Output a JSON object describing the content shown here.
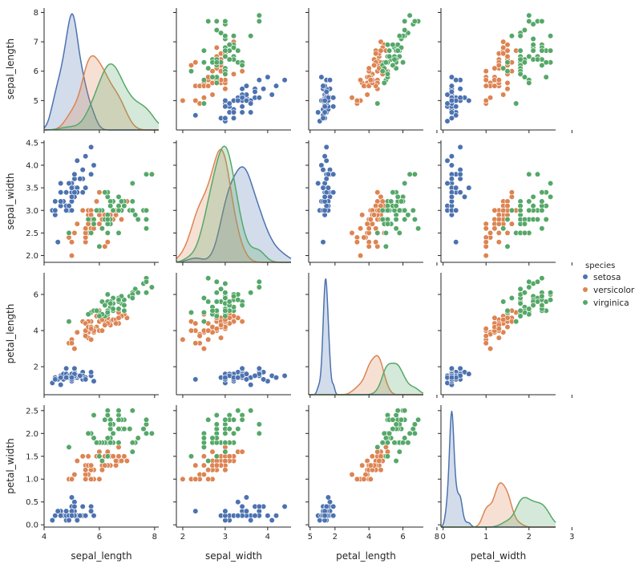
{
  "chart_data": {
    "type": "pairplot",
    "variables": [
      "sepal_length",
      "sepal_width",
      "petal_length",
      "petal_width"
    ],
    "axis_ranges": {
      "sepal_length": [
        4.0,
        8.15
      ],
      "sepal_width": [
        1.85,
        4.55
      ],
      "petal_length": [
        0.45,
        7.2
      ],
      "petal_width": [
        -0.05,
        2.62
      ]
    },
    "x_ticks": {
      "sepal_length": [
        4,
        6,
        8
      ],
      "sepal_width": [
        2,
        3,
        4,
        5
      ],
      "petal_length": [
        2,
        4,
        6,
        8
      ],
      "petal_width": [
        0,
        1,
        2,
        3
      ]
    },
    "y_ticks": {
      "sepal_length": [
        5,
        6,
        7,
        8
      ],
      "sepal_width": [
        2.0,
        2.5,
        3.0,
        3.5,
        4.0,
        4.5
      ],
      "petal_length": [
        2,
        4,
        6
      ],
      "petal_width": [
        0.0,
        0.5,
        1.0,
        1.5,
        2.0,
        2.5
      ]
    },
    "y_tick_labels": {
      "sepal_length": [
        "5",
        "6",
        "7",
        "8"
      ],
      "sepal_width": [
        "2.0",
        "2.5",
        "3.0",
        "3.5",
        "4.0",
        "4.5"
      ],
      "petal_length": [
        "2",
        "4",
        "6"
      ],
      "petal_width": [
        "0.0",
        "0.5",
        "1.0",
        "1.5",
        "2.0",
        "2.5"
      ]
    },
    "legend": {
      "title": "species",
      "placement": "right",
      "entries": [
        "setosa",
        "versicolor",
        "virginica"
      ]
    },
    "colors": {
      "setosa": "#4c72b0",
      "versicolor": "#dd8452",
      "virginica": "#55a868"
    },
    "grid": false,
    "diagonal": "kde",
    "series": [
      {
        "name": "setosa",
        "sepal_length": [
          5.1,
          4.9,
          4.7,
          4.6,
          5.0,
          5.4,
          4.6,
          5.0,
          4.4,
          4.9,
          5.4,
          4.8,
          4.8,
          4.3,
          5.8,
          5.7,
          5.4,
          5.1,
          5.7,
          5.1,
          5.4,
          5.1,
          4.6,
          5.1,
          4.8,
          5.0,
          5.0,
          5.2,
          5.2,
          4.7,
          4.8,
          5.4,
          5.2,
          5.5,
          4.9,
          5.0,
          5.5,
          4.9,
          4.4,
          5.1,
          5.0,
          4.5,
          4.4,
          5.0,
          5.1,
          4.8,
          5.1,
          4.6,
          5.3,
          5.0
        ],
        "sepal_width": [
          3.5,
          3.0,
          3.2,
          3.1,
          3.6,
          3.9,
          3.4,
          3.4,
          2.9,
          3.1,
          3.7,
          3.4,
          3.0,
          3.0,
          4.0,
          4.4,
          3.9,
          3.5,
          3.8,
          3.8,
          3.4,
          3.7,
          3.6,
          3.3,
          3.4,
          3.0,
          3.4,
          3.5,
          3.4,
          3.2,
          3.1,
          3.4,
          4.1,
          4.2,
          3.1,
          3.2,
          3.5,
          3.6,
          3.0,
          3.4,
          3.5,
          2.3,
          3.2,
          3.5,
          3.8,
          3.0,
          3.8,
          3.2,
          3.7,
          3.3
        ],
        "petal_length": [
          1.4,
          1.4,
          1.3,
          1.5,
          1.4,
          1.7,
          1.4,
          1.5,
          1.4,
          1.5,
          1.5,
          1.6,
          1.4,
          1.1,
          1.2,
          1.5,
          1.3,
          1.4,
          1.7,
          1.5,
          1.7,
          1.5,
          1.0,
          1.7,
          1.9,
          1.6,
          1.6,
          1.5,
          1.4,
          1.6,
          1.6,
          1.5,
          1.5,
          1.4,
          1.5,
          1.2,
          1.3,
          1.4,
          1.3,
          1.5,
          1.3,
          1.3,
          1.3,
          1.6,
          1.9,
          1.4,
          1.6,
          1.4,
          1.5,
          1.4
        ],
        "petal_width": [
          0.2,
          0.2,
          0.2,
          0.2,
          0.2,
          0.4,
          0.3,
          0.2,
          0.2,
          0.1,
          0.2,
          0.2,
          0.1,
          0.1,
          0.2,
          0.4,
          0.4,
          0.3,
          0.3,
          0.3,
          0.2,
          0.4,
          0.2,
          0.5,
          0.2,
          0.2,
          0.4,
          0.2,
          0.2,
          0.2,
          0.2,
          0.4,
          0.1,
          0.2,
          0.2,
          0.2,
          0.2,
          0.1,
          0.2,
          0.2,
          0.3,
          0.3,
          0.2,
          0.6,
          0.4,
          0.3,
          0.2,
          0.2,
          0.2,
          0.2
        ]
      },
      {
        "name": "versicolor",
        "sepal_length": [
          7.0,
          6.4,
          6.9,
          5.5,
          6.5,
          5.7,
          6.3,
          4.9,
          6.6,
          5.2,
          5.0,
          5.9,
          6.0,
          6.1,
          5.6,
          6.7,
          5.6,
          5.8,
          6.2,
          5.6,
          5.9,
          6.1,
          6.3,
          6.1,
          6.4,
          6.6,
          6.8,
          6.7,
          6.0,
          5.7,
          5.5,
          5.5,
          5.8,
          6.0,
          5.4,
          6.0,
          6.7,
          6.3,
          5.6,
          5.5,
          5.5,
          6.1,
          5.8,
          5.0,
          5.6,
          5.7,
          5.7,
          6.2,
          5.1,
          5.7
        ],
        "sepal_width": [
          3.2,
          3.2,
          3.1,
          2.3,
          2.8,
          2.8,
          3.3,
          2.4,
          2.9,
          2.7,
          2.0,
          3.0,
          2.2,
          2.9,
          2.9,
          3.1,
          3.0,
          2.7,
          2.2,
          2.5,
          3.2,
          2.8,
          2.5,
          2.8,
          2.9,
          3.0,
          2.8,
          3.0,
          2.9,
          2.6,
          2.4,
          2.4,
          2.7,
          2.7,
          3.0,
          3.4,
          3.1,
          2.3,
          3.0,
          2.5,
          2.6,
          3.0,
          2.6,
          2.3,
          2.7,
          3.0,
          2.9,
          2.9,
          2.5,
          2.8
        ],
        "petal_length": [
          4.7,
          4.5,
          4.9,
          4.0,
          4.6,
          4.5,
          4.7,
          3.3,
          4.6,
          3.9,
          3.5,
          4.2,
          4.0,
          4.7,
          3.6,
          4.4,
          4.5,
          4.1,
          4.5,
          3.9,
          4.8,
          4.0,
          4.9,
          4.7,
          4.3,
          4.4,
          4.8,
          5.0,
          4.5,
          3.5,
          3.8,
          3.7,
          3.9,
          5.1,
          4.5,
          4.5,
          4.7,
          4.4,
          4.1,
          4.0,
          4.4,
          4.6,
          4.0,
          3.3,
          4.2,
          4.2,
          4.2,
          4.3,
          3.0,
          4.1
        ],
        "petal_width": [
          1.4,
          1.5,
          1.5,
          1.3,
          1.5,
          1.3,
          1.6,
          1.0,
          1.3,
          1.4,
          1.0,
          1.5,
          1.0,
          1.4,
          1.3,
          1.4,
          1.5,
          1.0,
          1.5,
          1.1,
          1.8,
          1.3,
          1.5,
          1.2,
          1.3,
          1.4,
          1.4,
          1.7,
          1.5,
          1.0,
          1.1,
          1.0,
          1.2,
          1.6,
          1.5,
          1.6,
          1.5,
          1.3,
          1.3,
          1.3,
          1.2,
          1.4,
          1.2,
          1.0,
          1.3,
          1.2,
          1.3,
          1.3,
          1.1,
          1.3
        ]
      },
      {
        "name": "virginica",
        "sepal_length": [
          6.3,
          5.8,
          7.1,
          6.3,
          6.5,
          7.6,
          4.9,
          7.3,
          6.7,
          7.2,
          6.5,
          6.4,
          6.8,
          5.7,
          5.8,
          6.4,
          6.5,
          7.7,
          7.7,
          6.0,
          6.9,
          5.6,
          7.7,
          6.3,
          6.7,
          7.2,
          6.2,
          6.1,
          6.4,
          7.2,
          7.4,
          7.9,
          6.4,
          6.3,
          6.1,
          7.7,
          6.3,
          6.4,
          6.0,
          6.9,
          6.7,
          6.9,
          5.8,
          6.8,
          6.7,
          6.7,
          6.3,
          6.5,
          6.2,
          5.9
        ],
        "sepal_width": [
          3.3,
          2.7,
          3.0,
          2.9,
          3.0,
          3.0,
          2.5,
          2.9,
          2.5,
          3.6,
          3.2,
          2.7,
          3.0,
          2.5,
          2.8,
          3.2,
          3.0,
          3.8,
          2.6,
          2.2,
          3.2,
          2.8,
          2.8,
          2.7,
          3.3,
          3.2,
          2.8,
          3.0,
          2.8,
          3.0,
          2.8,
          3.8,
          2.8,
          2.8,
          2.6,
          3.0,
          3.4,
          3.1,
          3.0,
          3.1,
          3.1,
          3.1,
          2.7,
          3.2,
          3.3,
          3.0,
          2.5,
          3.0,
          3.4,
          3.0
        ],
        "petal_length": [
          6.0,
          5.1,
          5.9,
          5.6,
          5.8,
          6.6,
          4.5,
          6.3,
          5.8,
          6.1,
          5.1,
          5.3,
          5.5,
          5.0,
          5.1,
          5.3,
          5.5,
          6.7,
          6.9,
          5.0,
          5.7,
          4.9,
          6.7,
          4.9,
          5.7,
          6.0,
          4.8,
          4.9,
          5.6,
          5.8,
          6.1,
          6.4,
          5.6,
          5.1,
          5.6,
          6.1,
          5.6,
          5.5,
          4.8,
          5.4,
          5.6,
          5.1,
          5.1,
          5.9,
          5.7,
          5.2,
          5.0,
          5.2,
          5.4,
          5.1
        ],
        "petal_width": [
          2.5,
          1.9,
          2.1,
          1.8,
          2.2,
          2.1,
          1.7,
          1.8,
          1.8,
          2.5,
          2.0,
          1.9,
          2.1,
          2.0,
          2.4,
          2.3,
          1.8,
          2.2,
          2.3,
          1.5,
          2.3,
          2.0,
          2.0,
          1.8,
          2.1,
          1.8,
          1.8,
          1.8,
          2.1,
          1.6,
          1.9,
          2.0,
          2.2,
          1.5,
          1.4,
          2.3,
          2.4,
          1.8,
          1.8,
          2.1,
          2.4,
          2.3,
          1.9,
          2.3,
          2.5,
          2.3,
          1.9,
          2.0,
          2.3,
          1.8
        ]
      }
    ]
  }
}
